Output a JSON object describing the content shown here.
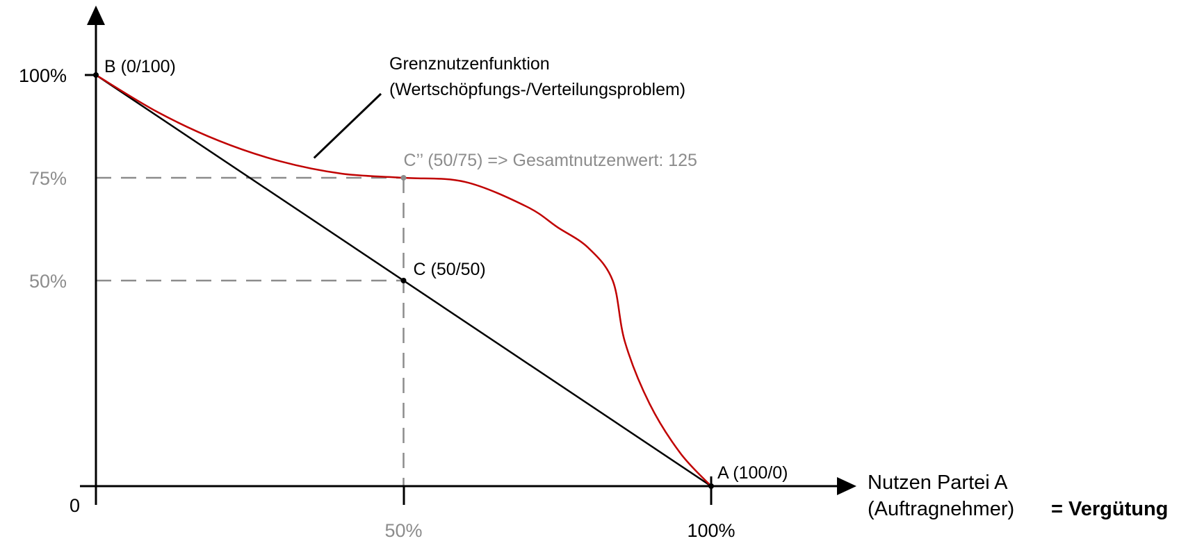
{
  "chart_data": {
    "type": "line",
    "title": "",
    "xlabel_line1": "Nutzen Partei A",
    "xlabel_line2": "(Auftragnehmer)",
    "xlabel_emphasis": "= Vergütung",
    "ylabel": "",
    "xlim": [
      0,
      100
    ],
    "ylim": [
      0,
      100
    ],
    "origin_label": "0",
    "x_ticks": [
      {
        "value": 50,
        "label": "50%",
        "color": "#8c8c8c"
      },
      {
        "value": 100,
        "label": "100%",
        "color": "#000000"
      }
    ],
    "y_ticks": [
      {
        "value": 100,
        "label": "100%",
        "color": "#000000"
      },
      {
        "value": 75,
        "label": "75%",
        "color": "#8c8c8c"
      },
      {
        "value": 50,
        "label": "50%",
        "color": "#8c8c8c"
      }
    ],
    "series": [
      {
        "id": "distribution-line",
        "color": "#000000",
        "style": "straight",
        "points": [
          [
            0,
            100
          ],
          [
            100,
            0
          ]
        ]
      },
      {
        "id": "marginal-utility-curve",
        "color": "#c00000",
        "style": "curve",
        "points": [
          [
            0,
            100
          ],
          [
            10,
            91
          ],
          [
            20,
            84
          ],
          [
            30,
            79
          ],
          [
            40,
            76
          ],
          [
            50,
            75
          ],
          [
            60,
            74
          ],
          [
            70,
            68
          ],
          [
            75,
            63
          ],
          [
            80,
            58
          ],
          [
            84,
            50
          ],
          [
            86,
            35
          ],
          [
            90,
            20
          ],
          [
            95,
            8
          ],
          [
            100,
            0
          ]
        ]
      }
    ],
    "points": [
      {
        "id": "point-b",
        "x": 0,
        "y": 100,
        "label": "B (0/100)",
        "color": "#000000"
      },
      {
        "id": "point-c",
        "x": 50,
        "y": 50,
        "label": "C (50/50)",
        "color": "#000000"
      },
      {
        "id": "point-c2",
        "x": 50,
        "y": 75,
        "label": "C’’ (50/75) => Gesamtnutzenwert: 125",
        "color": "#8c8c8c"
      },
      {
        "id": "point-a",
        "x": 100,
        "y": 0,
        "label": "A (100/0)",
        "color": "#000000"
      }
    ],
    "guides": [
      {
        "from": [
          0,
          75
        ],
        "to": [
          50,
          75
        ]
      },
      {
        "from": [
          50,
          75
        ],
        "to": [
          50,
          0
        ]
      },
      {
        "from": [
          0,
          50
        ],
        "to": [
          50,
          50
        ]
      }
    ],
    "annotation": {
      "line1": "Grenznutzenfunktion",
      "line2": "(Wertschöpfungs-/Verteilungsproblem)",
      "points_to": [
        35,
        80
      ]
    }
  }
}
